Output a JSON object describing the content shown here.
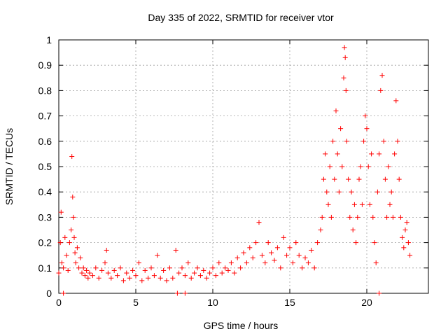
{
  "chart_data": {
    "type": "scatter",
    "title": "Day 335 of 2022, SRMTID for receiver vtor",
    "xlabel": "GPS time / hours",
    "ylabel": "SRMTID / TECUs",
    "xlim": [
      0,
      24
    ],
    "ylim": [
      0,
      1
    ],
    "x_ticks": [
      0,
      5,
      10,
      15,
      20
    ],
    "x_tick_labels": [
      "0",
      "5",
      "10",
      "15",
      "20"
    ],
    "y_ticks": [
      0,
      0.1,
      0.2,
      0.3,
      0.4,
      0.5,
      0.6,
      0.7,
      0.8,
      0.9,
      1.0
    ],
    "y_tick_labels": [
      "0",
      "0.1",
      "0.2",
      "0.3",
      "0.4",
      "0.5",
      "0.6",
      "0.7",
      "0.8",
      "0.9",
      "1"
    ],
    "grid": true,
    "marker": "+",
    "color": "#ff0000",
    "series": [
      {
        "name": "SRMTID",
        "x": [
          0.0,
          0.1,
          0.15,
          0.2,
          0.3,
          0.4,
          0.5,
          0.6,
          0.7,
          0.8,
          0.85,
          0.9,
          0.95,
          1.0,
          1.05,
          1.1,
          1.2,
          1.3,
          1.4,
          1.5,
          1.6,
          1.7,
          1.8,
          1.9,
          2.0,
          2.2,
          2.4,
          2.6,
          2.8,
          3.0,
          3.1,
          3.2,
          3.4,
          3.6,
          3.8,
          4.0,
          4.2,
          4.4,
          4.6,
          4.8,
          5.0,
          5.2,
          5.4,
          5.6,
          5.8,
          6.0,
          6.2,
          6.4,
          6.6,
          6.8,
          7.0,
          7.2,
          7.4,
          7.6,
          7.8,
          8.0,
          8.2,
          8.4,
          8.6,
          8.8,
          9.0,
          9.2,
          9.4,
          9.6,
          9.8,
          10.0,
          10.2,
          10.4,
          10.6,
          10.8,
          11.0,
          11.2,
          11.4,
          11.6,
          11.8,
          12.0,
          12.2,
          12.4,
          12.6,
          12.8,
          13.0,
          13.2,
          13.4,
          13.6,
          13.8,
          14.0,
          14.2,
          14.4,
          14.6,
          14.8,
          15.0,
          15.2,
          15.4,
          15.6,
          15.8,
          16.0,
          16.2,
          16.4,
          16.6,
          16.8,
          17.0,
          17.1,
          17.2,
          17.3,
          17.4,
          17.5,
          17.6,
          17.7,
          17.8,
          17.9,
          18.0,
          18.1,
          18.2,
          18.3,
          18.4,
          18.5,
          18.55,
          18.6,
          18.65,
          18.7,
          18.8,
          18.9,
          19.0,
          19.1,
          19.2,
          19.3,
          19.4,
          19.5,
          19.6,
          19.7,
          19.8,
          19.9,
          20.0,
          20.1,
          20.2,
          20.3,
          20.4,
          20.5,
          20.6,
          20.7,
          20.8,
          20.9,
          21.0,
          21.1,
          21.2,
          21.3,
          21.4,
          21.5,
          21.6,
          21.7,
          21.8,
          21.9,
          22.0,
          22.1,
          22.2,
          22.3,
          22.4,
          22.5,
          22.6,
          22.7,
          22.8
        ],
        "y": [
          0.08,
          0.2,
          0.32,
          0.12,
          0.1,
          0.22,
          0.15,
          0.09,
          0.2,
          0.25,
          0.54,
          0.38,
          0.3,
          0.22,
          0.16,
          0.12,
          0.18,
          0.1,
          0.14,
          0.08,
          0.1,
          0.07,
          0.09,
          0.06,
          0.08,
          0.07,
          0.1,
          0.06,
          0.09,
          0.12,
          0.17,
          0.08,
          0.06,
          0.09,
          0.07,
          0.1,
          0.05,
          0.08,
          0.06,
          0.09,
          0.07,
          0.12,
          0.05,
          0.09,
          0.06,
          0.1,
          0.07,
          0.15,
          0.06,
          0.09,
          0.05,
          0.1,
          0.06,
          0.17,
          0.08,
          0.1,
          0.07,
          0.12,
          0.06,
          0.08,
          0.1,
          0.07,
          0.09,
          0.06,
          0.08,
          0.1,
          0.07,
          0.12,
          0.08,
          0.1,
          0.09,
          0.12,
          0.08,
          0.14,
          0.1,
          0.16,
          0.12,
          0.18,
          0.14,
          0.2,
          0.28,
          0.15,
          0.12,
          0.2,
          0.16,
          0.13,
          0.18,
          0.1,
          0.22,
          0.15,
          0.18,
          0.12,
          0.2,
          0.15,
          0.1,
          0.14,
          0.12,
          0.17,
          0.1,
          0.2,
          0.25,
          0.3,
          0.45,
          0.55,
          0.4,
          0.35,
          0.5,
          0.3,
          0.6,
          0.45,
          0.72,
          0.55,
          0.4,
          0.65,
          0.5,
          0.85,
          0.97,
          0.93,
          0.8,
          0.6,
          0.45,
          0.3,
          0.4,
          0.25,
          0.35,
          0.2,
          0.3,
          0.45,
          0.5,
          0.35,
          0.6,
          0.7,
          0.65,
          0.5,
          0.35,
          0.55,
          0.3,
          0.2,
          0.12,
          0.4,
          0.55,
          0.8,
          0.86,
          0.6,
          0.45,
          0.3,
          0.5,
          0.35,
          0.4,
          0.3,
          0.55,
          0.76,
          0.6,
          0.45,
          0.3,
          0.22,
          0.18,
          0.25,
          0.28,
          0.2,
          0.15
        ]
      }
    ],
    "baseline_markers_x": [
      0.3,
      7.7,
      8.2,
      20.8
    ]
  }
}
